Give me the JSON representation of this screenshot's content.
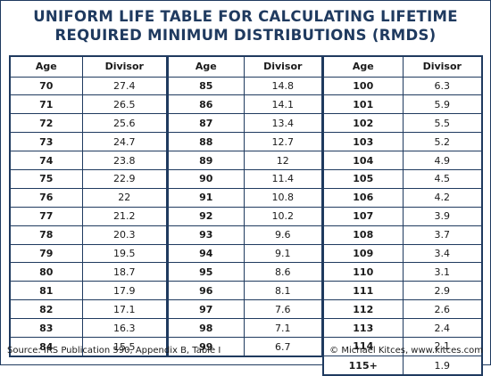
{
  "title": {
    "line1": "UNIFORM LIFE TABLE FOR CALCULATING LIFETIME",
    "line2": "REQUIRED MINIMUM DISTRIBUTIONS (RMDS)"
  },
  "headers": {
    "age": "Age",
    "divisor": "Divisor"
  },
  "tables": [
    {
      "rows": [
        {
          "age": "70",
          "divisor": "27.4"
        },
        {
          "age": "71",
          "divisor": "26.5"
        },
        {
          "age": "72",
          "divisor": "25.6"
        },
        {
          "age": "73",
          "divisor": "24.7"
        },
        {
          "age": "74",
          "divisor": "23.8"
        },
        {
          "age": "75",
          "divisor": "22.9"
        },
        {
          "age": "76",
          "divisor": "22"
        },
        {
          "age": "77",
          "divisor": "21.2"
        },
        {
          "age": "78",
          "divisor": "20.3"
        },
        {
          "age": "79",
          "divisor": "19.5"
        },
        {
          "age": "80",
          "divisor": "18.7"
        },
        {
          "age": "81",
          "divisor": "17.9"
        },
        {
          "age": "82",
          "divisor": "17.1"
        },
        {
          "age": "83",
          "divisor": "16.3"
        },
        {
          "age": "84",
          "divisor": "15.5"
        }
      ]
    },
    {
      "rows": [
        {
          "age": "85",
          "divisor": "14.8"
        },
        {
          "age": "86",
          "divisor": "14.1"
        },
        {
          "age": "87",
          "divisor": "13.4"
        },
        {
          "age": "88",
          "divisor": "12.7"
        },
        {
          "age": "89",
          "divisor": "12"
        },
        {
          "age": "90",
          "divisor": "11.4"
        },
        {
          "age": "91",
          "divisor": "10.8"
        },
        {
          "age": "92",
          "divisor": "10.2"
        },
        {
          "age": "93",
          "divisor": "9.6"
        },
        {
          "age": "94",
          "divisor": "9.1"
        },
        {
          "age": "95",
          "divisor": "8.6"
        },
        {
          "age": "96",
          "divisor": "8.1"
        },
        {
          "age": "97",
          "divisor": "7.6"
        },
        {
          "age": "98",
          "divisor": "7.1"
        },
        {
          "age": "99",
          "divisor": "6.7"
        }
      ]
    },
    {
      "rows": [
        {
          "age": "100",
          "divisor": "6.3"
        },
        {
          "age": "101",
          "divisor": "5.9"
        },
        {
          "age": "102",
          "divisor": "5.5"
        },
        {
          "age": "103",
          "divisor": "5.2"
        },
        {
          "age": "104",
          "divisor": "4.9"
        },
        {
          "age": "105",
          "divisor": "4.5"
        },
        {
          "age": "106",
          "divisor": "4.2"
        },
        {
          "age": "107",
          "divisor": "3.9"
        },
        {
          "age": "108",
          "divisor": "3.7"
        },
        {
          "age": "109",
          "divisor": "3.4"
        },
        {
          "age": "110",
          "divisor": "3.1"
        },
        {
          "age": "111",
          "divisor": "2.9"
        },
        {
          "age": "112",
          "divisor": "2.6"
        },
        {
          "age": "113",
          "divisor": "2.4"
        },
        {
          "age": "114",
          "divisor": "2.1"
        },
        {
          "age": "115+",
          "divisor": "1.9"
        }
      ]
    }
  ],
  "footer": {
    "source": "Source: IRS Publication 590, Appendix B, Table I",
    "credit": "© Michael Kitces, www.kitces.com"
  },
  "colors": {
    "accent": "#1f3a5f"
  }
}
